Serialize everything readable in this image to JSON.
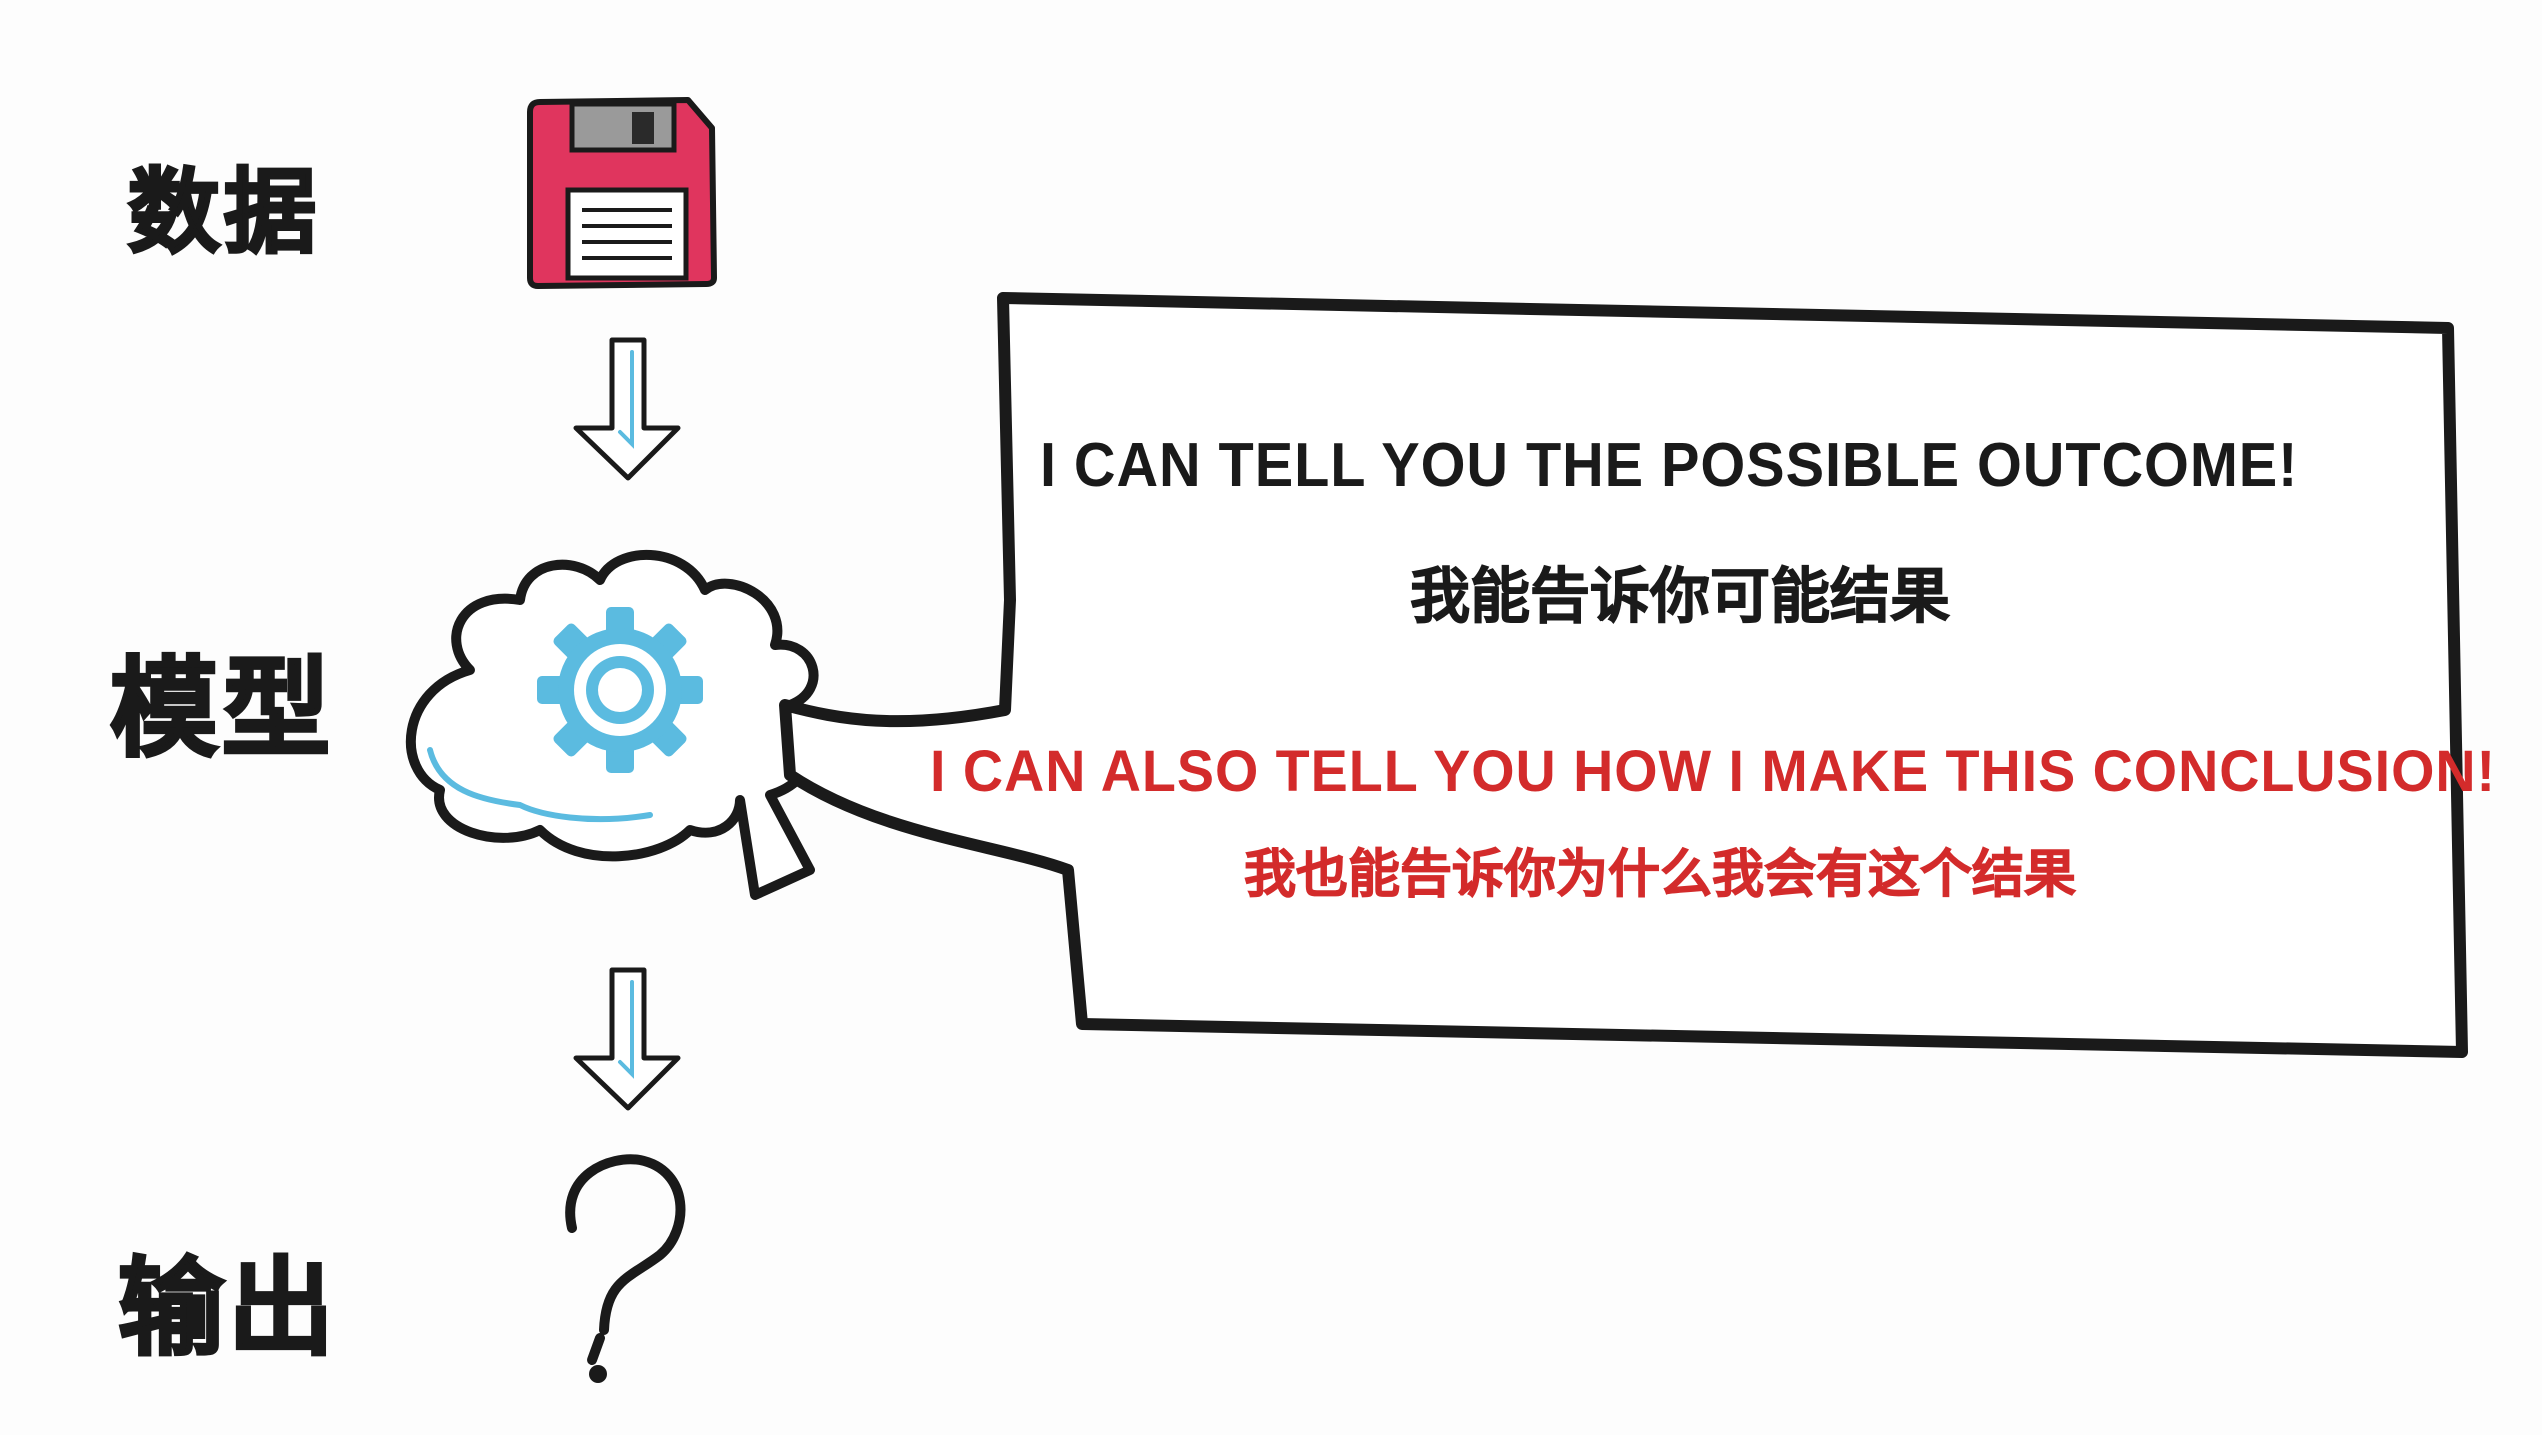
{
  "steps": {
    "data_label": "数据",
    "model_label": "模型",
    "output_label": "输出"
  },
  "speech_bubble": {
    "line1_en": "I CAN TELL YOU THE POSSIBLE OUTCOME!",
    "line1_zh": "我能告诉你可能结果",
    "line2_en": "I CAN ALSO TELL YOU HOW I MAKE THIS CONCLUSION!",
    "line2_zh": "我也能告诉你为什么我会有这个结果"
  },
  "icons": {
    "data": "floppy-disk-icon",
    "model": "brain-gear-icon",
    "output": "question-mark-icon",
    "flow": "down-arrow-icon"
  },
  "colors": {
    "ink": "#1a1a1a",
    "accent_red": "#d32b2b",
    "floppy_pink": "#e0355e",
    "gear_blue": "#5bbbe0",
    "arrow_blue": "#5bbbe0"
  }
}
